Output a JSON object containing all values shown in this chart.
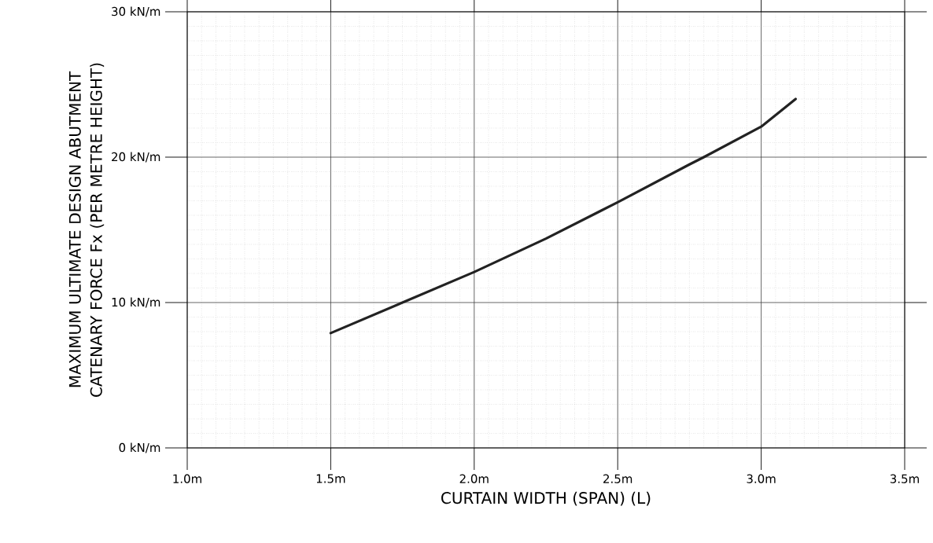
{
  "chart_data": {
    "type": "line",
    "xlabel": "CURTAIN WIDTH (SPAN) (L)",
    "ylabel": "MAXIMUM ULTIMATE DESIGN ABUTMENT CATENARY FORCE Fx (PER METRE HEIGHT)",
    "x": [
      1.5,
      1.75,
      2.0,
      2.25,
      2.5,
      2.75,
      2.8,
      3.0,
      3.12
    ],
    "series": [
      {
        "color": "#222222",
        "values": [
          7.9,
          10,
          12.1,
          14.4,
          16.9,
          19.5,
          20,
          22.1,
          24
        ]
      }
    ],
    "xlim": [
      1.0,
      3.5
    ],
    "ylim": [
      0,
      30
    ],
    "xticks": [
      {
        "value": 1.0,
        "label": "1.0m"
      },
      {
        "value": 1.5,
        "label": "1.5m"
      },
      {
        "value": 2.0,
        "label": "2.0m"
      },
      {
        "value": 2.5,
        "label": "2.5m"
      },
      {
        "value": 3.0,
        "label": "3.0m"
      },
      {
        "value": 3.5,
        "label": "3.5m"
      }
    ],
    "yticks": [
      {
        "value": 0,
        "label": "0 kN/m"
      },
      {
        "value": 10,
        "label": "10 kN/m"
      },
      {
        "value": 20,
        "label": "20 kN/m"
      },
      {
        "value": 30,
        "label": "30 kN/m"
      }
    ],
    "grid": true,
    "marker": "none",
    "line_style": "solid"
  }
}
